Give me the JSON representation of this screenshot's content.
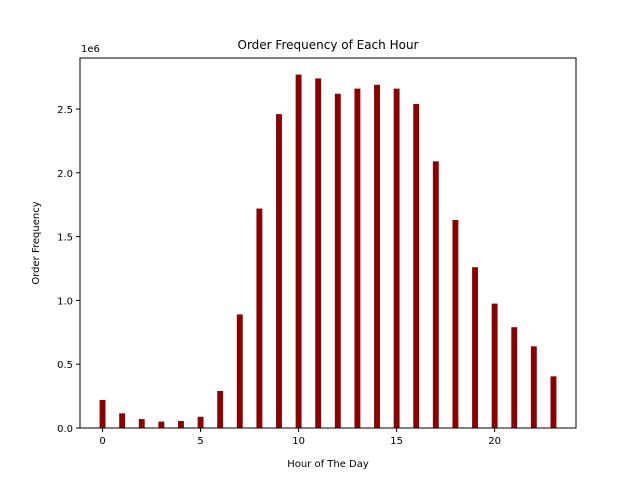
{
  "chart_data": {
    "type": "bar",
    "title": "Order Frequency of Each Hour",
    "xlabel": "Hour of The Day",
    "ylabel": "Order Frequency",
    "y_offset_label": "1e6",
    "x": [
      0,
      1,
      2,
      3,
      4,
      5,
      6,
      7,
      8,
      9,
      10,
      11,
      12,
      13,
      14,
      15,
      16,
      17,
      18,
      19,
      20,
      21,
      22,
      23
    ],
    "values": [
      220000,
      115000,
      70000,
      50000,
      55000,
      88000,
      290000,
      890000,
      1720000,
      2460000,
      2770000,
      2740000,
      2620000,
      2660000,
      2690000,
      2660000,
      2540000,
      2090000,
      1630000,
      1260000,
      975000,
      790000,
      640000,
      405000
    ],
    "xlim": [
      -1.15,
      24.15
    ],
    "ylim": [
      0,
      2.9
    ],
    "ylim_units_note_scale": 1000000,
    "x_ticks": [
      0,
      5,
      10,
      15,
      20
    ],
    "x_tick_labels": [
      "0",
      "5",
      "10",
      "15",
      "20"
    ],
    "y_ticks": [
      0,
      0.5,
      1.0,
      1.5,
      2.0,
      2.5
    ],
    "y_tick_labels": [
      "0.0",
      "0.5",
      "1.0",
      "1.5",
      "2.0",
      "2.5"
    ],
    "bar_color": "#8b0000",
    "grid": false,
    "legend": "none"
  }
}
